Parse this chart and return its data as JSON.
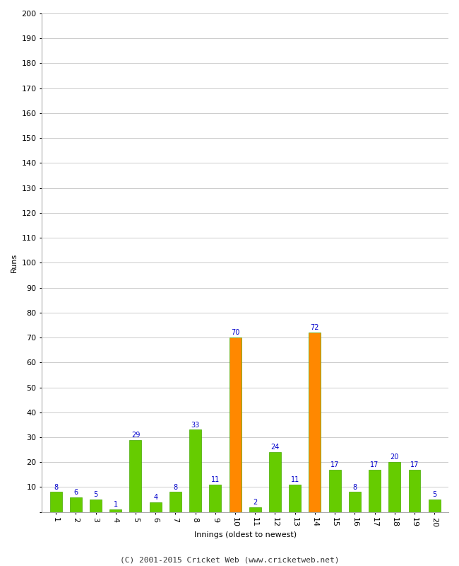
{
  "xlabel": "Innings (oldest to newest)",
  "ylabel": "Runs",
  "innings": [
    1,
    2,
    3,
    4,
    5,
    6,
    7,
    8,
    9,
    10,
    11,
    12,
    13,
    14,
    15,
    16,
    17,
    18,
    19,
    20
  ],
  "values": [
    8,
    6,
    5,
    1,
    29,
    4,
    8,
    33,
    11,
    70,
    2,
    24,
    11,
    72,
    17,
    8,
    17,
    20,
    17,
    5
  ],
  "colors": [
    "#66cc00",
    "#66cc00",
    "#66cc00",
    "#66cc00",
    "#66cc00",
    "#66cc00",
    "#66cc00",
    "#66cc00",
    "#66cc00",
    "#ff8800",
    "#66cc00",
    "#66cc00",
    "#66cc00",
    "#ff8800",
    "#66cc00",
    "#66cc00",
    "#66cc00",
    "#66cc00",
    "#66cc00",
    "#66cc00"
  ],
  "ylim": [
    0,
    200
  ],
  "yticks": [
    0,
    10,
    20,
    30,
    40,
    50,
    60,
    70,
    80,
    90,
    100,
    110,
    120,
    130,
    140,
    150,
    160,
    170,
    180,
    190,
    200
  ],
  "label_color": "#0000cc",
  "background_color": "#ffffff",
  "grid_color": "#cccccc",
  "footer": "(C) 2001-2015 Cricket Web (www.cricketweb.net)",
  "bar_edge_color": "#44aa00",
  "axis_fontsize": 8,
  "label_fontsize": 7,
  "footer_fontsize": 8,
  "tick_label_rotation": 270
}
